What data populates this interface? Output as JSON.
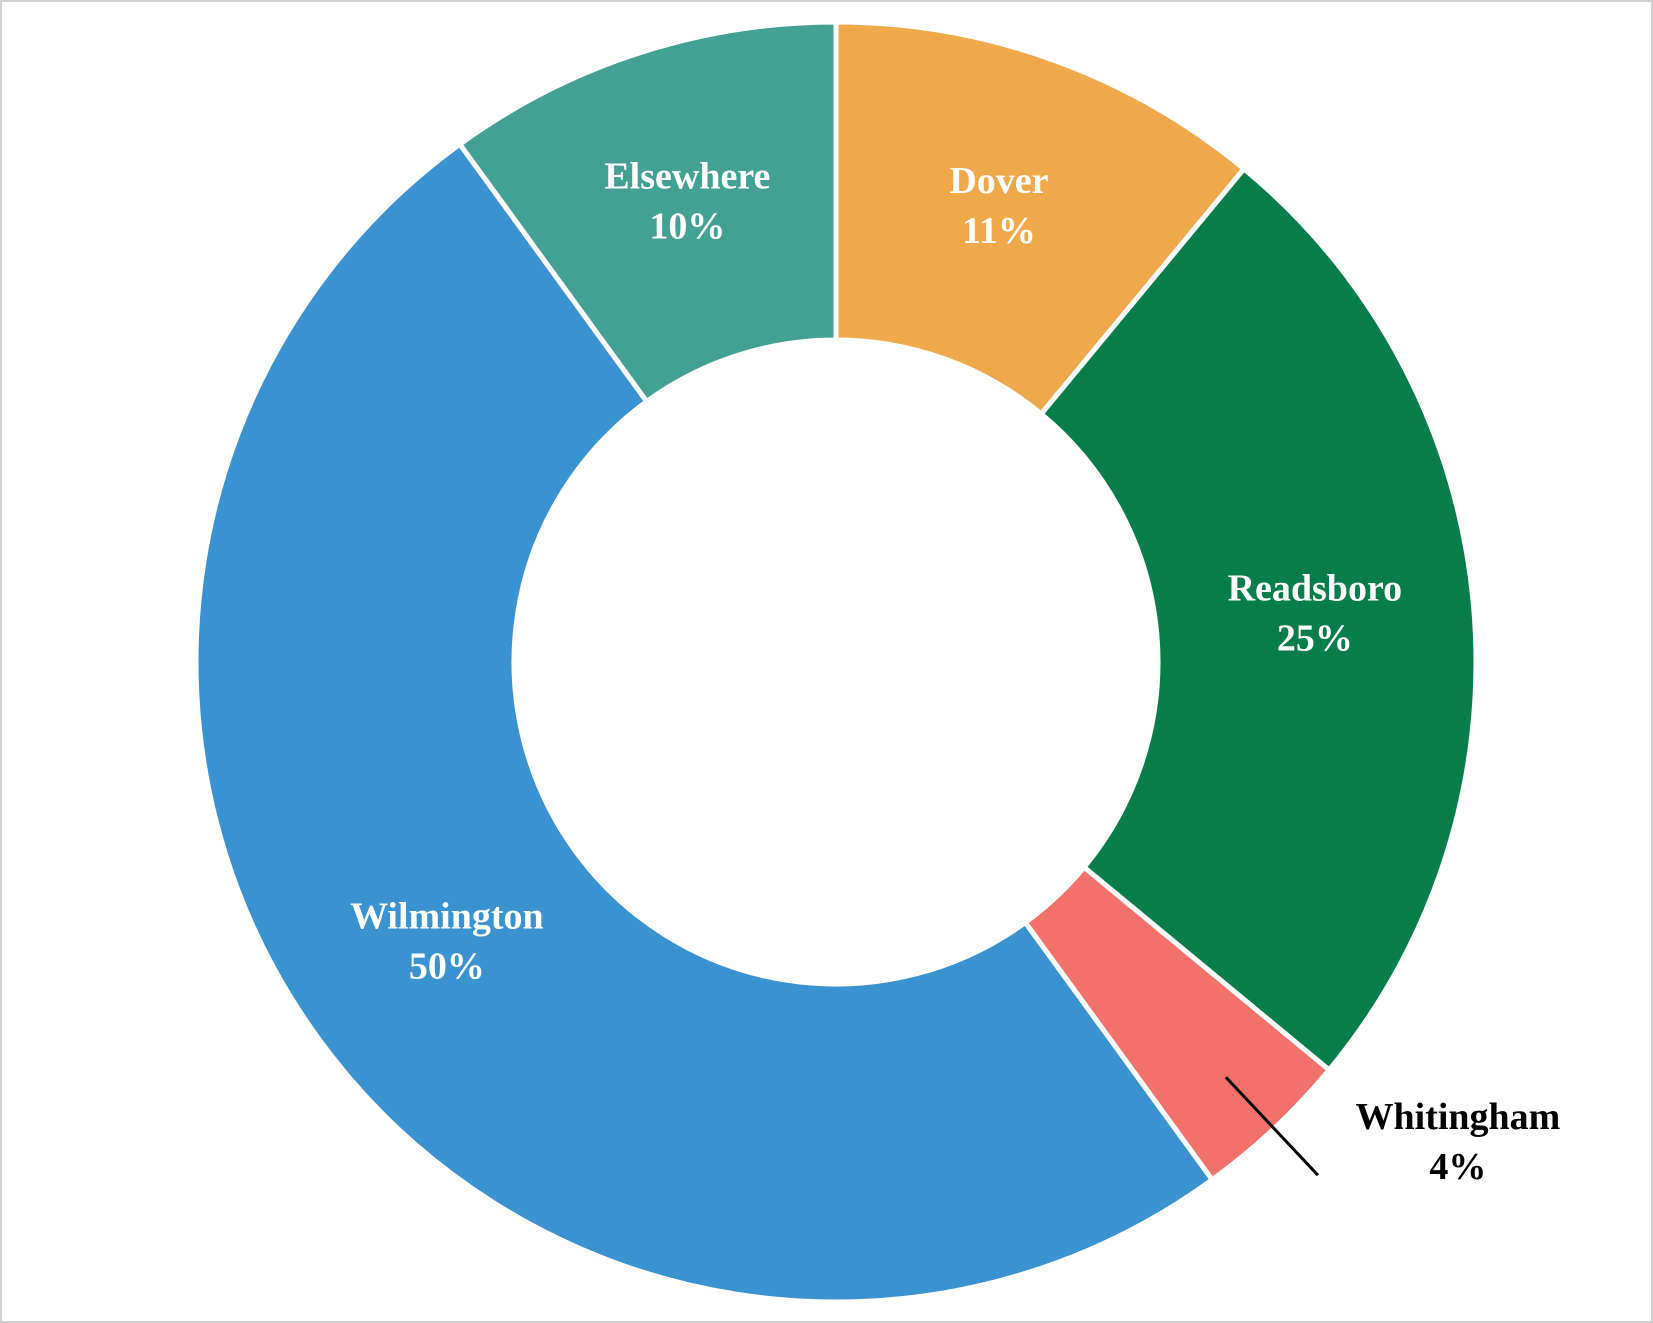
{
  "chart_data": {
    "type": "donut",
    "categories": [
      "Dover",
      "Readsboro",
      "Whitingham",
      "Wilmington",
      "Elsewhere"
    ],
    "values": [
      11,
      25,
      4,
      50,
      10
    ],
    "value_labels": [
      "11%",
      "25%",
      "4%",
      "50%",
      "10%"
    ],
    "colors": [
      "#efa84a",
      "#067d4a",
      "#f2716a",
      "#3b92d0",
      "#43a194"
    ]
  }
}
